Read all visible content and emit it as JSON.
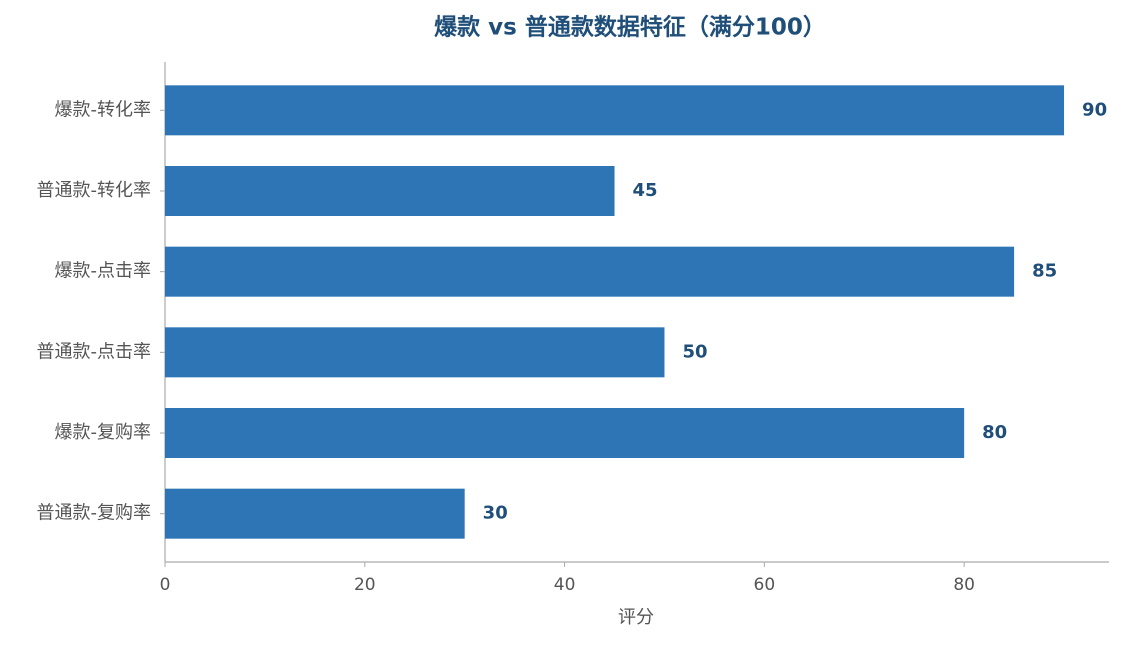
{
  "chart_data": {
    "type": "bar",
    "orientation": "horizontal",
    "title": "爆款 vs 普通款数据特征（满分100）",
    "x_label": "评分",
    "categories": [
      "爆款-转化率",
      "普通款-转化率",
      "爆款-点击率",
      "普通款-点击率",
      "爆款-复购率",
      "普通款-复购率"
    ],
    "values": [
      90,
      45,
      85,
      50,
      80,
      30
    ],
    "color": "#2e75b6",
    "xlim": [
      0,
      94.5
    ],
    "xticks": [
      0,
      20,
      40,
      60,
      80
    ],
    "grid": false
  }
}
